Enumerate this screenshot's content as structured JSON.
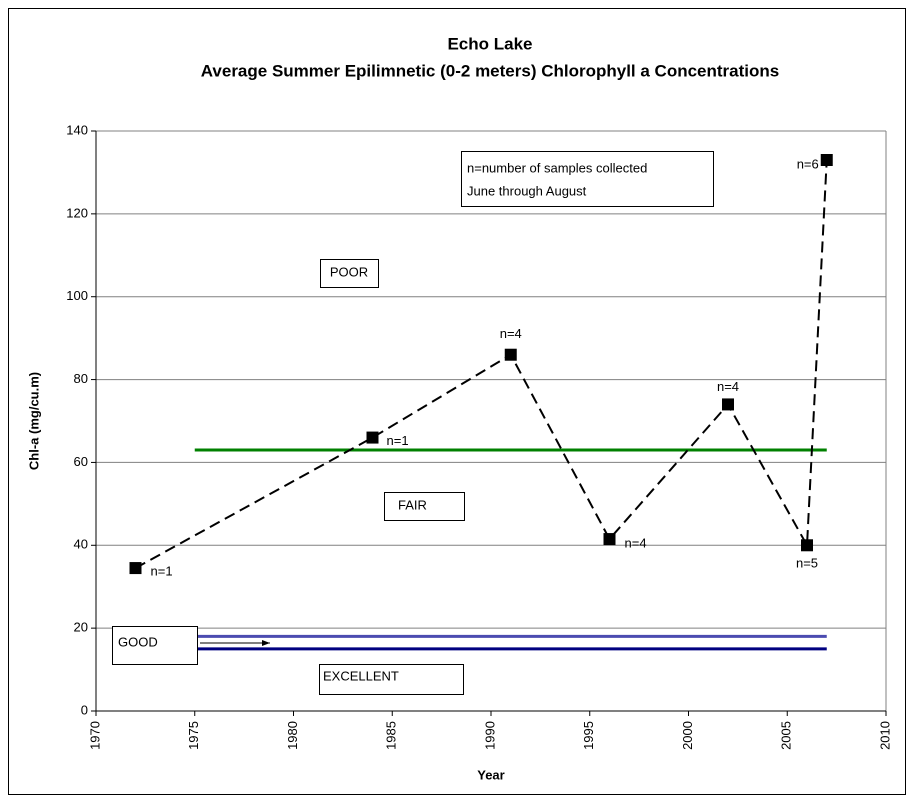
{
  "chart_data": {
    "type": "line",
    "title": [
      "Echo Lake",
      "Average Summer Epilimnetic (0-2 meters) Chlorophyll a Concentrations"
    ],
    "x_label": "Year",
    "y_label": "Chl-a (mg/cu.m)",
    "x": [
      1972,
      1984,
      1991,
      1996,
      2002,
      2006,
      2007
    ],
    "series": [
      {
        "color": "#000000",
        "values": [
          34.5,
          66,
          86,
          41.5,
          74,
          40,
          133
        ]
      }
    ],
    "point_labels": [
      "n=1",
      "n=1",
      "n=4",
      "n=4",
      "n=4",
      "n=5",
      "n=6"
    ],
    "reference_lines": [
      {
        "value": 63,
        "color": "#008000",
        "x": [
          1975,
          2007
        ]
      },
      {
        "value": 18,
        "color": "#4b4bb0",
        "x": [
          1975,
          2007
        ]
      },
      {
        "value": 15,
        "color": "#000080",
        "x": [
          1975,
          2007
        ]
      }
    ],
    "zone_labels": [
      "POOR",
      "FAIR",
      "GOOD",
      "EXCELLENT"
    ],
    "note": [
      "n=number of samples collected",
      "June through August"
    ],
    "xlim": [
      1970,
      2010
    ],
    "xticks": [
      1970,
      1975,
      1980,
      1985,
      1990,
      1995,
      2000,
      2005,
      2010
    ],
    "ylim": [
      0,
      140
    ],
    "yticks": [
      0,
      20,
      40,
      60,
      80,
      100,
      120,
      140
    ],
    "grid": true
  }
}
